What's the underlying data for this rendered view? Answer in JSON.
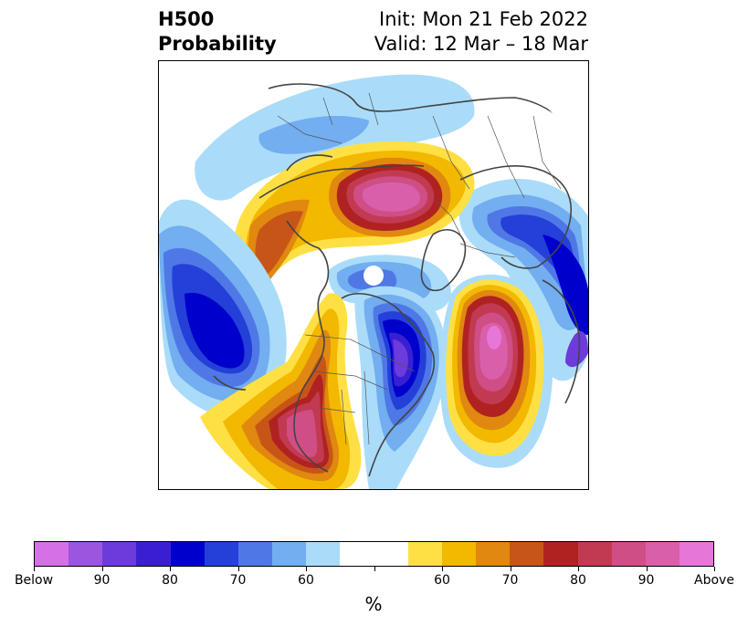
{
  "title": {
    "left_line1": "H500",
    "left_line2": "Probability",
    "right_line1": "Init: Mon 21 Feb 2022",
    "right_line2": "Valid: 12 Mar – 18 Mar"
  },
  "colorbar": {
    "unit": "%",
    "colors": [
      "#d670e6",
      "#9b55df",
      "#6d3bdc",
      "#3a1fd2",
      "#0000cc",
      "#2440d8",
      "#4f78e6",
      "#72aef0",
      "#aadcfa",
      "#ffffff",
      "#ffffff",
      "#ffe044",
      "#f3b800",
      "#e0880f",
      "#c85518",
      "#b02222",
      "#c23a52",
      "#cf4e85",
      "#da5faa",
      "#e676d8"
    ],
    "ticks": [
      "Below",
      "90",
      "80",
      "70",
      "60",
      "",
      "60",
      "70",
      "80",
      "90",
      "Above"
    ]
  },
  "map": {
    "anomalies": [
      {
        "id": "alaska-bering-ridge",
        "sign": "above",
        "max_pct": 85
      },
      {
        "id": "western-canada-ridge",
        "sign": "above",
        "max_pct": 75
      },
      {
        "id": "greenland-ridge",
        "sign": "above",
        "max_pct": 90
      },
      {
        "id": "north-atlantic-ridge",
        "sign": "above",
        "max_pct": 100
      },
      {
        "id": "north-pacific-trough",
        "sign": "below",
        "max_pct": 80
      },
      {
        "id": "eastern-north-america-trough",
        "sign": "below",
        "max_pct": 90
      },
      {
        "id": "arctic-trough",
        "sign": "below",
        "max_pct": 60
      },
      {
        "id": "northern-europe-trough",
        "sign": "below",
        "max_pct": 80
      }
    ]
  }
}
